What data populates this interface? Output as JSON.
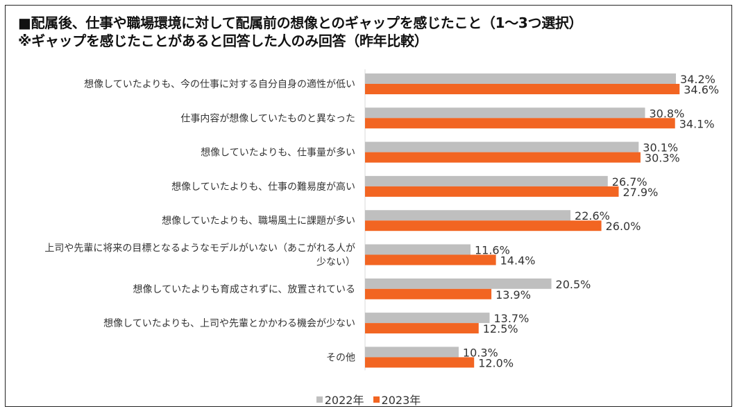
{
  "chart_data": {
    "type": "bar",
    "orientation": "horizontal",
    "title": "■配属後、仕事や職場環境に対して配属前の想像とのギャップを感じたこと（1～3つ選択）",
    "subtitle": "※ギャップを感じたことがあると回答した人のみ回答（昨年比較）",
    "categories": [
      [
        "想像していたよりも、今の仕事に対する自分自身の適性が低い"
      ],
      [
        "仕事内容が想像していたものと異なった"
      ],
      [
        "想像していたよりも、仕事量が多い"
      ],
      [
        "想像していたよりも、仕事の難易度が高い"
      ],
      [
        "想像していたよりも、職場風土に課題が多い"
      ],
      [
        "上司や先輩に将来の目標となるようなモデルがいない（あこがれる人が",
        "少ない）"
      ],
      [
        "想像していたよりも育成されずに、放置されている"
      ],
      [
        "想像していたよりも、上司や先輩とかかわる機会が少ない"
      ],
      [
        "その他"
      ]
    ],
    "series": [
      {
        "name": "2022年",
        "color": "#bfbfbf",
        "values": [
          34.2,
          30.8,
          30.1,
          26.7,
          22.6,
          11.6,
          20.5,
          13.7,
          10.3
        ],
        "labels": [
          "34.2%",
          "30.8%",
          "30.1%",
          "26.7%",
          "22.6%",
          "11.6%",
          "20.5%",
          "13.7%",
          "10.3%"
        ]
      },
      {
        "name": "2023年",
        "color": "#f26522",
        "values": [
          34.6,
          34.1,
          30.3,
          27.9,
          26.0,
          14.4,
          13.9,
          12.5,
          12.0
        ],
        "labels": [
          "34.6%",
          "34.1%",
          "30.3%",
          "27.9%",
          "26.0%",
          "14.4%",
          "13.9%",
          "12.5%",
          "12.0%"
        ]
      }
    ],
    "xlim": [
      0,
      40
    ],
    "unit": "%",
    "grid": false,
    "legend_position": "bottom-center"
  }
}
